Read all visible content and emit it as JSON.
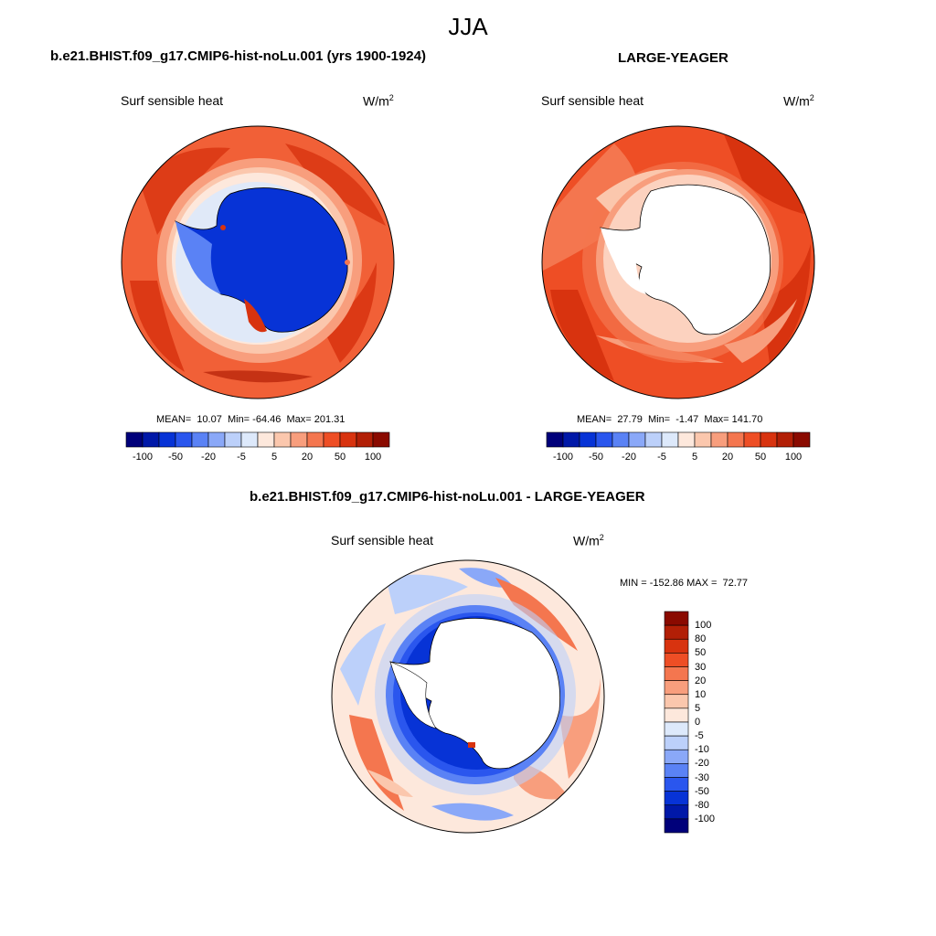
{
  "figure": {
    "season": "JJA"
  },
  "panels": [
    {
      "title": "b.e21.BHIST.f09_g17.CMIP6-hist-noLu.001 (yrs 1900-1924)",
      "variable": "Surf sensible heat",
      "units_base": "W/m",
      "units_exp": "2",
      "stats": "MEAN=  10.07  Min= -64.46  Max= 201.31"
    },
    {
      "title": "LARGE-YEAGER",
      "variable": "Surf sensible heat",
      "units_base": "W/m",
      "units_exp": "2",
      "stats": "MEAN=  27.79  Min=  -1.47  Max= 141.70"
    },
    {
      "title": "b.e21.BHIST.f09_g17.CMIP6-hist-noLu.001 - LARGE-YEAGER",
      "variable": "Surf sensible heat",
      "units_base": "W/m",
      "units_exp": "2",
      "stats": "MIN = -152.86 MAX =  72.77"
    }
  ],
  "colorbar_horizontal": {
    "colors": [
      "#00007a",
      "#0018a8",
      "#0733d6",
      "#2a56ee",
      "#5a82f5",
      "#8aa8f8",
      "#bcd0fa",
      "#dde9fb",
      "#fde8dc",
      "#fbc7ad",
      "#f89e7d",
      "#f4764f",
      "#ee4e25",
      "#d8330f",
      "#b21f06",
      "#8a0a00"
    ],
    "tick_labels": [
      "-100",
      "-50",
      "-20",
      "-5",
      "5",
      "20",
      "50",
      "100"
    ]
  },
  "colorbar_vertical": {
    "colors": [
      "#00007a",
      "#0018a8",
      "#0733d6",
      "#2a56ee",
      "#5a82f5",
      "#8aa8f8",
      "#bcd0fa",
      "#dde9fb",
      "#fde8dc",
      "#fbc7ad",
      "#f89e7d",
      "#f4764f",
      "#ee4e25",
      "#d8330f",
      "#b21f06",
      "#8a0a00"
    ],
    "labels_top_to_bottom": [
      "100",
      "80",
      "50",
      "30",
      "20",
      "10",
      "5",
      "0",
      "-5",
      "-10",
      "-20",
      "-30",
      "-50",
      "-80",
      "-100"
    ]
  },
  "colors": {
    "ocean_warm": "#f4764f",
    "ocean_hot": "#d8330f",
    "land_cold": "#2a56ee",
    "neutral_pale": "#fde8dc",
    "diff_blue": "#2a56ee"
  }
}
